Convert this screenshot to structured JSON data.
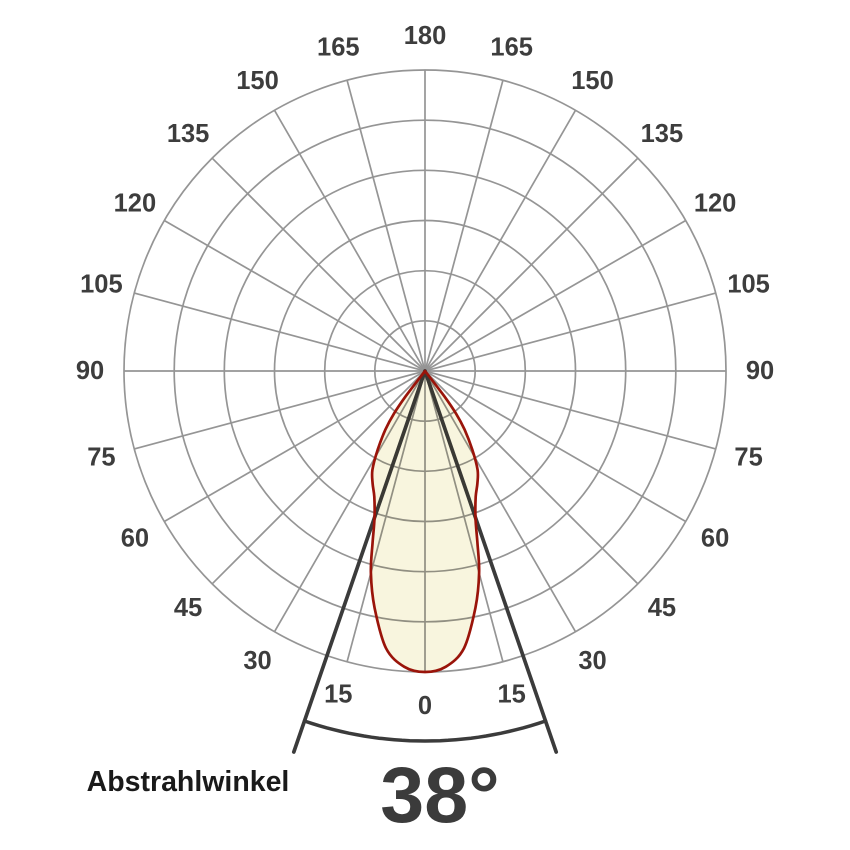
{
  "page": {
    "background": "#ffffff"
  },
  "colors": {
    "grid": "#959595",
    "ink": "#3b3b3b",
    "tick_label": "#3d3d3d",
    "lobe_fill": "#f8f5de",
    "lobe_stroke": "#9a140a",
    "caption": "#1a1a1a"
  },
  "chart_data": {
    "type": "line",
    "coordinate_system": "polar",
    "description": "Photometric light distribution curve (luminaire beam diagram); 0 deg points straight down, angles increase to 180 deg at top, angular scale mirrored left and right, lobe normalized so peak at 0 deg touches the outer ring",
    "angle_tick_step_deg": 15,
    "angle_tick_labels": [
      0,
      15,
      30,
      45,
      60,
      75,
      90,
      105,
      120,
      135,
      150,
      165,
      180
    ],
    "angle_ticks_mirrored": true,
    "radial_rings": 6,
    "radial_axis_labels": "none (relative intensity, outer ring = 100%)",
    "beam_angle_deg": 38,
    "beam_half_angle_deg": 19,
    "beam_profile": [
      [
        0,
        1.0
      ],
      [
        4,
        0.985
      ],
      [
        8,
        0.93
      ],
      [
        12,
        0.805
      ],
      [
        15,
        0.695
      ],
      [
        17,
        0.595
      ],
      [
        19,
        0.515
      ],
      [
        22,
        0.45
      ],
      [
        25,
        0.412
      ],
      [
        28,
        0.372
      ],
      [
        31,
        0.305
      ],
      [
        34,
        0.235
      ],
      [
        36,
        0.175
      ],
      [
        37.3,
        0.105
      ],
      [
        38,
        0.0
      ]
    ],
    "annotations": {
      "caption": "Abstrahlwinkel",
      "value": "38°"
    }
  }
}
